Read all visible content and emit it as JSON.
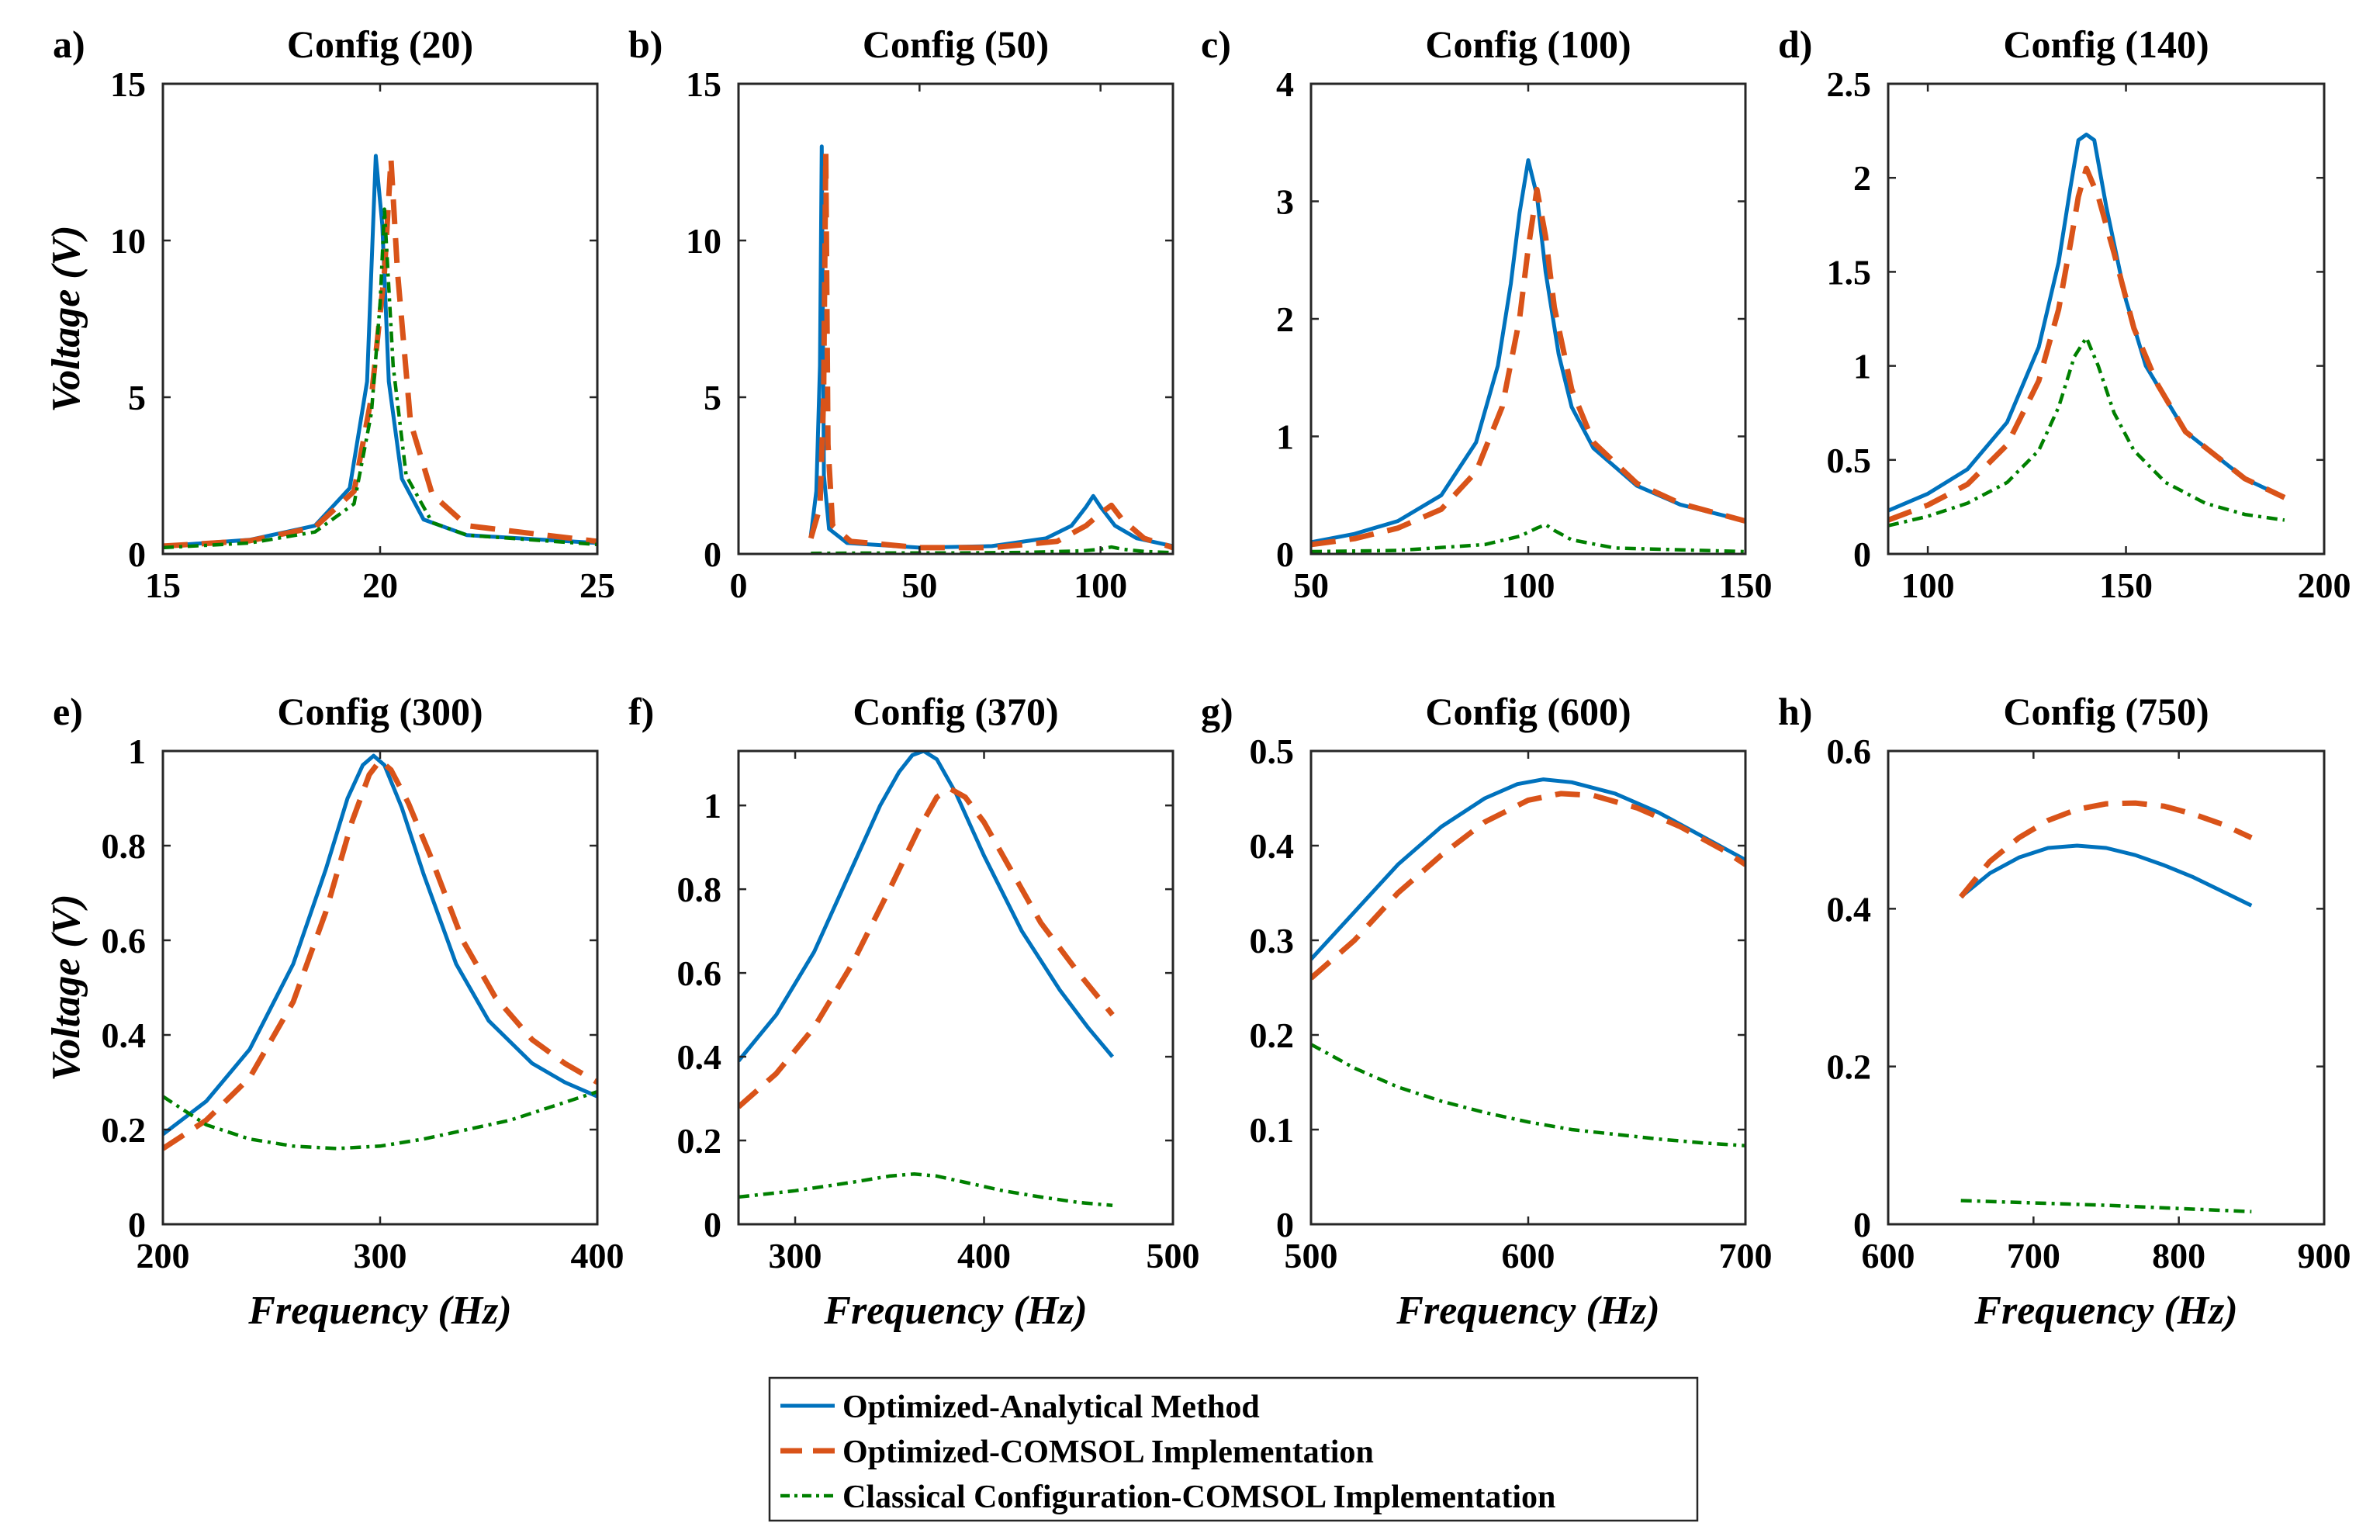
{
  "chart_data": {
    "type": "line",
    "layout": "2x4 grid of subplots with one shared legend at bottom-center",
    "series_names": [
      "Optimized-Analytical Method",
      "Optimized-COMSOL Implementation",
      "Classical Configuration-COMSOL Implementation"
    ],
    "series_colors": [
      "#0072BD",
      "#D95319",
      "#008000"
    ],
    "series_styles": [
      "solid",
      "dashed",
      "dashdot"
    ],
    "legend_position": "bottom-center",
    "panels": [
      {
        "tag": "a)",
        "title": "Config (20)",
        "ylabel": "Voltage (V)",
        "xlabel": "",
        "xlim": [
          15,
          25
        ],
        "ylim": [
          0,
          15
        ],
        "xticks": [
          15,
          20,
          25
        ],
        "yticks": [
          0,
          5,
          10,
          15
        ],
        "series": [
          {
            "x": [
              15,
              17,
              18.5,
              19.3,
              19.7,
              19.9,
              20.05,
              20.2,
              20.5,
              21,
              22,
              25
            ],
            "y": [
              0.25,
              0.45,
              0.9,
              2.1,
              5.5,
              12.7,
              10.5,
              5.5,
              2.4,
              1.1,
              0.6,
              0.35
            ]
          },
          {
            "x": [
              15,
              17,
              18.5,
              19.4,
              19.8,
              20.1,
              20.25,
              20.4,
              20.7,
              21.2,
              22,
              25
            ],
            "y": [
              0.25,
              0.42,
              0.85,
              2.0,
              5.0,
              9.0,
              12.6,
              9.0,
              4.2,
              1.9,
              0.9,
              0.4
            ]
          },
          {
            "x": [
              15,
              17,
              18.5,
              19.4,
              19.8,
              20.0,
              20.1,
              20.3,
              20.6,
              21.2,
              22,
              25
            ],
            "y": [
              0.2,
              0.35,
              0.7,
              1.6,
              4.5,
              8.0,
              11.0,
              6.0,
              2.5,
              1.0,
              0.6,
              0.3
            ]
          }
        ]
      },
      {
        "tag": "b)",
        "title": "Config (50)",
        "ylabel": "",
        "xlabel": "",
        "xlim": [
          0,
          120
        ],
        "ylim": [
          0,
          15
        ],
        "xticks": [
          0,
          50,
          100
        ],
        "yticks": [
          0,
          5,
          10,
          15
        ],
        "series": [
          {
            "x": [
              20,
              21.5,
              22.5,
              23,
              23.6,
              25,
              30,
              50,
              70,
              85,
              92,
              96,
              98,
              100,
              104,
              110,
              120
            ],
            "y": [
              0.6,
              2.0,
              6.0,
              13.0,
              2.5,
              0.8,
              0.35,
              0.2,
              0.25,
              0.5,
              0.9,
              1.5,
              1.85,
              1.5,
              0.9,
              0.5,
              0.25
            ]
          },
          {
            "x": [
              20,
              22.5,
              23.5,
              24.1,
              24.7,
              26,
              31,
              50,
              70,
              88,
              96,
              100,
              103,
              106,
              112,
              120
            ],
            "y": [
              0.5,
              1.5,
              5.0,
              12.8,
              3.5,
              0.9,
              0.4,
              0.2,
              0.2,
              0.4,
              0.9,
              1.3,
              1.55,
              1.1,
              0.5,
              0.2
            ]
          },
          {
            "x": [
              20,
              40,
              60,
              80,
              95,
              100,
              103,
              106,
              112,
              120
            ],
            "y": [
              0.02,
              0.03,
              0.03,
              0.05,
              0.1,
              0.15,
              0.22,
              0.15,
              0.08,
              0.04
            ]
          }
        ]
      },
      {
        "tag": "c)",
        "title": "Config (100)",
        "ylabel": "",
        "xlabel": "",
        "xlim": [
          50,
          150
        ],
        "ylim": [
          0,
          4
        ],
        "xticks": [
          50,
          100,
          150
        ],
        "yticks": [
          0,
          1,
          2,
          3,
          4
        ],
        "series": [
          {
            "x": [
              50,
              60,
              70,
              80,
              88,
              93,
              96,
              98,
              100,
              102,
              104,
              107,
              110,
              115,
              125,
              135,
              150
            ],
            "y": [
              0.1,
              0.17,
              0.28,
              0.5,
              0.95,
              1.6,
              2.3,
              2.9,
              3.35,
              3.05,
              2.4,
              1.7,
              1.25,
              0.9,
              0.58,
              0.42,
              0.28
            ]
          },
          {
            "x": [
              50,
              60,
              70,
              80,
              88,
              94,
              98,
              100,
              102,
              104,
              106,
              110,
              115,
              125,
              135,
              150
            ],
            "y": [
              0.08,
              0.13,
              0.22,
              0.38,
              0.7,
              1.25,
              2.0,
              2.6,
              3.1,
              2.7,
              2.1,
              1.4,
              0.95,
              0.6,
              0.43,
              0.28
            ]
          },
          {
            "x": [
              50,
              70,
              90,
              98,
              102,
              104,
              106,
              110,
              120,
              150
            ],
            "y": [
              0.02,
              0.03,
              0.08,
              0.15,
              0.22,
              0.25,
              0.2,
              0.12,
              0.05,
              0.02
            ]
          }
        ]
      },
      {
        "tag": "d)",
        "title": "Config (140)",
        "ylabel": "",
        "xlabel": "",
        "xlim": [
          90,
          200
        ],
        "ylim": [
          0,
          2.5
        ],
        "xticks": [
          100,
          150,
          200
        ],
        "yticks": [
          0,
          0.5,
          1,
          1.5,
          2,
          2.5
        ],
        "series": [
          {
            "x": [
              90,
              100,
              110,
              120,
              128,
              133,
              136,
              138,
              140,
              142,
              145,
              150,
              155,
              165,
              180,
              190
            ],
            "y": [
              0.23,
              0.32,
              0.45,
              0.7,
              1.1,
              1.55,
              1.95,
              2.2,
              2.23,
              2.2,
              1.85,
              1.35,
              1.0,
              0.65,
              0.4,
              0.3
            ]
          },
          {
            "x": [
              90,
              100,
              110,
              120,
              128,
              133,
              136,
              138,
              140,
              143,
              147,
              152,
              158,
              165,
              180,
              190
            ],
            "y": [
              0.18,
              0.26,
              0.37,
              0.58,
              0.92,
              1.3,
              1.65,
              1.9,
              2.05,
              1.9,
              1.6,
              1.2,
              0.9,
              0.65,
              0.4,
              0.3
            ]
          },
          {
            "x": [
              90,
              100,
              110,
              120,
              128,
              133,
              137,
              140,
              143,
              147,
              152,
              160,
              170,
              180,
              190
            ],
            "y": [
              0.15,
              0.2,
              0.27,
              0.38,
              0.55,
              0.78,
              1.05,
              1.15,
              1.0,
              0.75,
              0.55,
              0.38,
              0.27,
              0.21,
              0.18
            ]
          }
        ]
      },
      {
        "tag": "e)",
        "title": "Config (300)",
        "ylabel": "Voltage (V)",
        "xlabel": "Frequency (Hz)",
        "xlim": [
          200,
          400
        ],
        "ylim": [
          0,
          1
        ],
        "xticks": [
          200,
          300,
          400
        ],
        "yticks": [
          0,
          0.2,
          0.4,
          0.6,
          0.8,
          1
        ],
        "series": [
          {
            "x": [
              200,
              220,
              240,
              260,
              275,
              285,
              292,
              297,
              302,
              310,
              320,
              335,
              350,
              370,
              385,
              400
            ],
            "y": [
              0.19,
              0.26,
              0.37,
              0.55,
              0.75,
              0.9,
              0.97,
              0.99,
              0.97,
              0.88,
              0.74,
              0.55,
              0.43,
              0.34,
              0.3,
              0.27
            ]
          },
          {
            "x": [
              200,
              220,
              240,
              260,
              275,
              287,
              295,
              300,
              305,
              313,
              323,
              338,
              353,
              370,
              385,
              400
            ],
            "y": [
              0.16,
              0.22,
              0.31,
              0.47,
              0.66,
              0.85,
              0.95,
              0.98,
              0.96,
              0.89,
              0.78,
              0.6,
              0.48,
              0.39,
              0.34,
              0.3
            ]
          },
          {
            "x": [
              200,
              220,
              240,
              260,
              280,
              300,
              320,
              340,
              360,
              380,
              400
            ],
            "y": [
              0.27,
              0.21,
              0.18,
              0.165,
              0.16,
              0.165,
              0.18,
              0.2,
              0.22,
              0.25,
              0.28
            ]
          }
        ]
      },
      {
        "tag": "f)",
        "title": "Config (370)",
        "ylabel": "",
        "xlabel": "Frequency (Hz)",
        "xlim": [
          270,
          500
        ],
        "ylim": [
          0,
          1.13
        ],
        "xticks": [
          300,
          400,
          500
        ],
        "yticks": [
          0,
          0.2,
          0.4,
          0.6,
          0.8,
          1
        ],
        "series": [
          {
            "x": [
              270,
              290,
              310,
              330,
              345,
              355,
              362,
              368,
              375,
              385,
              400,
              420,
              440,
              455,
              468
            ],
            "y": [
              0.39,
              0.5,
              0.65,
              0.85,
              1.0,
              1.08,
              1.12,
              1.13,
              1.11,
              1.03,
              0.88,
              0.7,
              0.56,
              0.47,
              0.4
            ]
          },
          {
            "x": [
              270,
              290,
              310,
              330,
              350,
              365,
              375,
              382,
              390,
              400,
              415,
              430,
              450,
              468
            ],
            "y": [
              0.28,
              0.36,
              0.47,
              0.62,
              0.8,
              0.94,
              1.02,
              1.04,
              1.02,
              0.96,
              0.84,
              0.72,
              0.6,
              0.5
            ]
          },
          {
            "x": [
              270,
              300,
              330,
              350,
              363,
              375,
              390,
              410,
              430,
              450,
              468
            ],
            "y": [
              0.065,
              0.08,
              0.1,
              0.115,
              0.12,
              0.115,
              0.1,
              0.08,
              0.065,
              0.052,
              0.045
            ]
          }
        ]
      },
      {
        "tag": "g)",
        "title": "Config (600)",
        "ylabel": "",
        "xlabel": "Frequency (Hz)",
        "xlim": [
          500,
          700
        ],
        "ylim": [
          0,
          0.5
        ],
        "xticks": [
          500,
          600,
          700
        ],
        "yticks": [
          0,
          0.1,
          0.2,
          0.3,
          0.4,
          0.5
        ],
        "series": [
          {
            "x": [
              500,
              520,
              540,
              560,
              580,
              595,
              607,
              620,
              640,
              660,
              680,
              700
            ],
            "y": [
              0.28,
              0.33,
              0.38,
              0.42,
              0.45,
              0.465,
              0.47,
              0.467,
              0.455,
              0.435,
              0.41,
              0.385
            ]
          },
          {
            "x": [
              500,
              520,
              540,
              560,
              580,
              600,
              615,
              630,
              650,
              670,
              690,
              700
            ],
            "y": [
              0.26,
              0.3,
              0.35,
              0.39,
              0.425,
              0.448,
              0.455,
              0.453,
              0.44,
              0.42,
              0.395,
              0.38
            ]
          },
          {
            "x": [
              500,
              520,
              540,
              560,
              580,
              600,
              620,
              640,
              660,
              680,
              700
            ],
            "y": [
              0.19,
              0.165,
              0.145,
              0.13,
              0.118,
              0.108,
              0.1,
              0.095,
              0.09,
              0.086,
              0.083
            ]
          }
        ]
      },
      {
        "tag": "h)",
        "title": "Config (750)",
        "ylabel": "",
        "xlabel": "Frequency (Hz)",
        "xlim": [
          600,
          900
        ],
        "ylim": [
          0,
          0.6
        ],
        "xticks": [
          600,
          700,
          800,
          900
        ],
        "yticks": [
          0,
          0.2,
          0.4,
          0.6
        ],
        "series": [
          {
            "x": [
              650,
              670,
              690,
              710,
              730,
              750,
              770,
              790,
              810,
              830,
              850
            ],
            "y": [
              0.415,
              0.445,
              0.465,
              0.477,
              0.48,
              0.477,
              0.468,
              0.455,
              0.44,
              0.422,
              0.404
            ]
          },
          {
            "x": [
              650,
              670,
              690,
              710,
              730,
              750,
              770,
              790,
              810,
              830,
              850
            ],
            "y": [
              0.415,
              0.46,
              0.49,
              0.512,
              0.526,
              0.533,
              0.534,
              0.53,
              0.52,
              0.507,
              0.49
            ]
          },
          {
            "x": [
              650,
              700,
              750,
              800,
              850
            ],
            "y": [
              0.03,
              0.027,
              0.024,
              0.02,
              0.016
            ]
          }
        ]
      }
    ]
  }
}
